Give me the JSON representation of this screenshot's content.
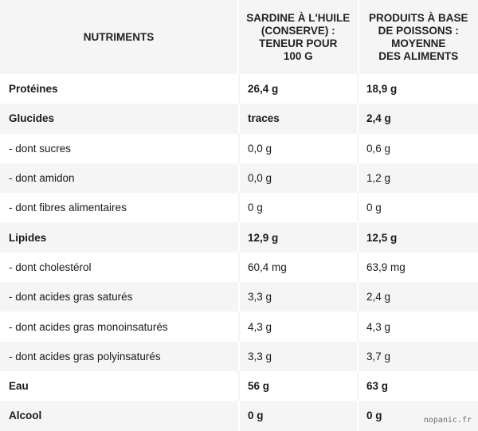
{
  "header": {
    "col1": "NUTRIMENTS",
    "col2_lines": [
      "SARDINE À L'HUILE",
      "(CONSERVE) :",
      "TENEUR POUR",
      "100 G"
    ],
    "col3_lines": [
      "PRODUITS À BASE",
      "DE POISSONS :",
      "MOYENNE",
      "DES ALIMENTS"
    ]
  },
  "rows": [
    {
      "name": "Protéines",
      "v1": "26,4 g",
      "v2": "18,9 g",
      "bold": true
    },
    {
      "name": "Glucides",
      "v1": "traces",
      "v2": "2,4 g",
      "bold": true
    },
    {
      "name": "- dont sucres",
      "v1": "0,0 g",
      "v2": "0,6 g",
      "bold": false
    },
    {
      "name": "- dont amidon",
      "v1": "0,0 g",
      "v2": "1,2 g",
      "bold": false
    },
    {
      "name": "- dont fibres alimentaires",
      "v1": "0 g",
      "v2": "0 g",
      "bold": false
    },
    {
      "name": "Lipides",
      "v1": "12,9 g",
      "v2": "12,5 g",
      "bold": true
    },
    {
      "name": "- dont cholestérol",
      "v1": "60,4 mg",
      "v2": "63,9 mg",
      "bold": false
    },
    {
      "name": "- dont acides gras saturés",
      "v1": "3,3 g",
      "v2": "2,4 g",
      "bold": false
    },
    {
      "name": "- dont acides gras monoinsaturés",
      "v1": "4,3 g",
      "v2": "4,3 g",
      "bold": false
    },
    {
      "name": "- dont acides gras polyinsaturés",
      "v1": "3,3 g",
      "v2": "3,7 g",
      "bold": false
    },
    {
      "name": "Eau",
      "v1": "56 g",
      "v2": "63 g",
      "bold": true
    },
    {
      "name": "Alcool",
      "v1": "0 g",
      "v2": "0 g",
      "bold": true
    }
  ],
  "watermark": "nopanic.fr"
}
